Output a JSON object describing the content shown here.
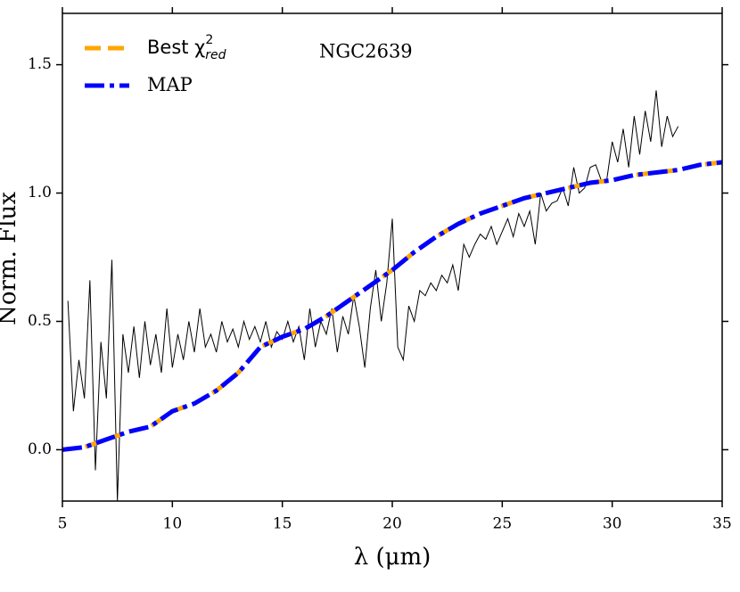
{
  "chart_data": {
    "type": "line",
    "ylabel": "Norm. Flux",
    "xlabel": "λ (μm)",
    "annotation": "NGC2639",
    "xlim": [
      5,
      35
    ],
    "xticks": [
      5,
      10,
      15,
      20,
      25,
      30,
      35
    ],
    "ylim": [
      -0.2,
      1.7
    ],
    "yticks": [
      {
        "value": 0,
        "label": "0.0"
      },
      0.5,
      {
        "value": 1,
        "label": "1.0"
      },
      1.5
    ],
    "legend": "upper left",
    "spectrum": {
      "color": "#000000",
      "x": [
        5.25,
        5.5,
        5.75,
        6.0,
        6.25,
        6.5,
        6.75,
        7.0,
        7.25,
        7.5,
        7.75,
        8.0,
        8.25,
        8.5,
        8.75,
        9.0,
        9.25,
        9.5,
        9.75,
        10.0,
        10.25,
        10.5,
        10.75,
        11.0,
        11.25,
        11.5,
        11.75,
        12.0,
        12.25,
        12.5,
        12.75,
        13.0,
        13.25,
        13.5,
        13.75,
        14.0,
        14.25,
        14.5,
        14.75,
        15.0,
        15.25,
        15.5,
        15.75,
        16.0,
        16.25,
        16.5,
        16.75,
        17.0,
        17.25,
        17.5,
        17.75,
        18.0,
        18.25,
        18.5,
        18.75,
        19.0,
        19.25,
        19.5,
        19.75,
        20.0,
        20.25,
        20.5,
        20.75,
        21.0,
        21.25,
        21.5,
        21.75,
        22.0,
        22.25,
        22.5,
        22.75,
        23.0,
        23.25,
        23.5,
        23.75,
        24.0,
        24.25,
        24.5,
        24.75,
        25.0,
        25.25,
        25.5,
        25.75,
        26.0,
        26.25,
        26.5,
        26.75,
        27.0,
        27.25,
        27.5,
        27.75,
        28.0,
        28.25,
        28.5,
        28.75,
        29.0,
        29.25,
        29.5,
        29.75,
        30.0,
        30.25,
        30.5,
        30.75,
        31.0,
        31.25,
        31.5,
        31.75,
        32.0,
        32.25,
        32.5,
        32.75,
        33.0
      ],
      "values": [
        0.58,
        0.15,
        0.35,
        0.2,
        0.66,
        -0.08,
        0.42,
        0.2,
        0.74,
        -0.2,
        0.45,
        0.3,
        0.48,
        0.28,
        0.5,
        0.33,
        0.45,
        0.3,
        0.55,
        0.32,
        0.45,
        0.35,
        0.5,
        0.38,
        0.55,
        0.4,
        0.45,
        0.38,
        0.5,
        0.42,
        0.47,
        0.4,
        0.5,
        0.43,
        0.48,
        0.42,
        0.5,
        0.4,
        0.46,
        0.43,
        0.5,
        0.42,
        0.48,
        0.35,
        0.55,
        0.4,
        0.5,
        0.45,
        0.55,
        0.38,
        0.52,
        0.45,
        0.6,
        0.48,
        0.32,
        0.55,
        0.7,
        0.5,
        0.65,
        0.9,
        0.4,
        0.35,
        0.56,
        0.5,
        0.62,
        0.6,
        0.65,
        0.62,
        0.68,
        0.65,
        0.72,
        0.62,
        0.8,
        0.75,
        0.8,
        0.84,
        0.82,
        0.87,
        0.8,
        0.85,
        0.9,
        0.83,
        0.92,
        0.87,
        0.93,
        0.8,
        1.0,
        0.93,
        0.96,
        0.97,
        1.02,
        0.95,
        1.1,
        1.0,
        1.02,
        1.1,
        1.11,
        1.05,
        1.05,
        1.2,
        1.12,
        1.25,
        1.1,
        1.3,
        1.15,
        1.32,
        1.2,
        1.4,
        1.18,
        1.3,
        1.22,
        1.26
      ]
    },
    "model_x": [
      5,
      6,
      7,
      8,
      9,
      10,
      11,
      12,
      13,
      14,
      15,
      16,
      17,
      18,
      19,
      20,
      21,
      22,
      23,
      24,
      25,
      26,
      27,
      28,
      29,
      30,
      31,
      32,
      33,
      34,
      35
    ],
    "series": [
      {
        "name": "Best χ",
        "name_sup": "2",
        "name_sub": "red",
        "color": "#ffa500",
        "values": [
          0.0,
          0.01,
          0.04,
          0.07,
          0.09,
          0.15,
          0.18,
          0.23,
          0.3,
          0.4,
          0.44,
          0.47,
          0.52,
          0.58,
          0.64,
          0.7,
          0.77,
          0.83,
          0.88,
          0.92,
          0.95,
          0.98,
          1.0,
          1.02,
          1.04,
          1.05,
          1.07,
          1.08,
          1.09,
          1.11,
          1.12
        ]
      },
      {
        "name": "MAP",
        "color": "#0000ff",
        "values": [
          0.0,
          0.01,
          0.04,
          0.07,
          0.09,
          0.15,
          0.18,
          0.23,
          0.3,
          0.4,
          0.44,
          0.47,
          0.52,
          0.58,
          0.64,
          0.7,
          0.77,
          0.83,
          0.88,
          0.92,
          0.95,
          0.98,
          1.0,
          1.02,
          1.04,
          1.05,
          1.07,
          1.08,
          1.09,
          1.11,
          1.12
        ]
      }
    ]
  }
}
